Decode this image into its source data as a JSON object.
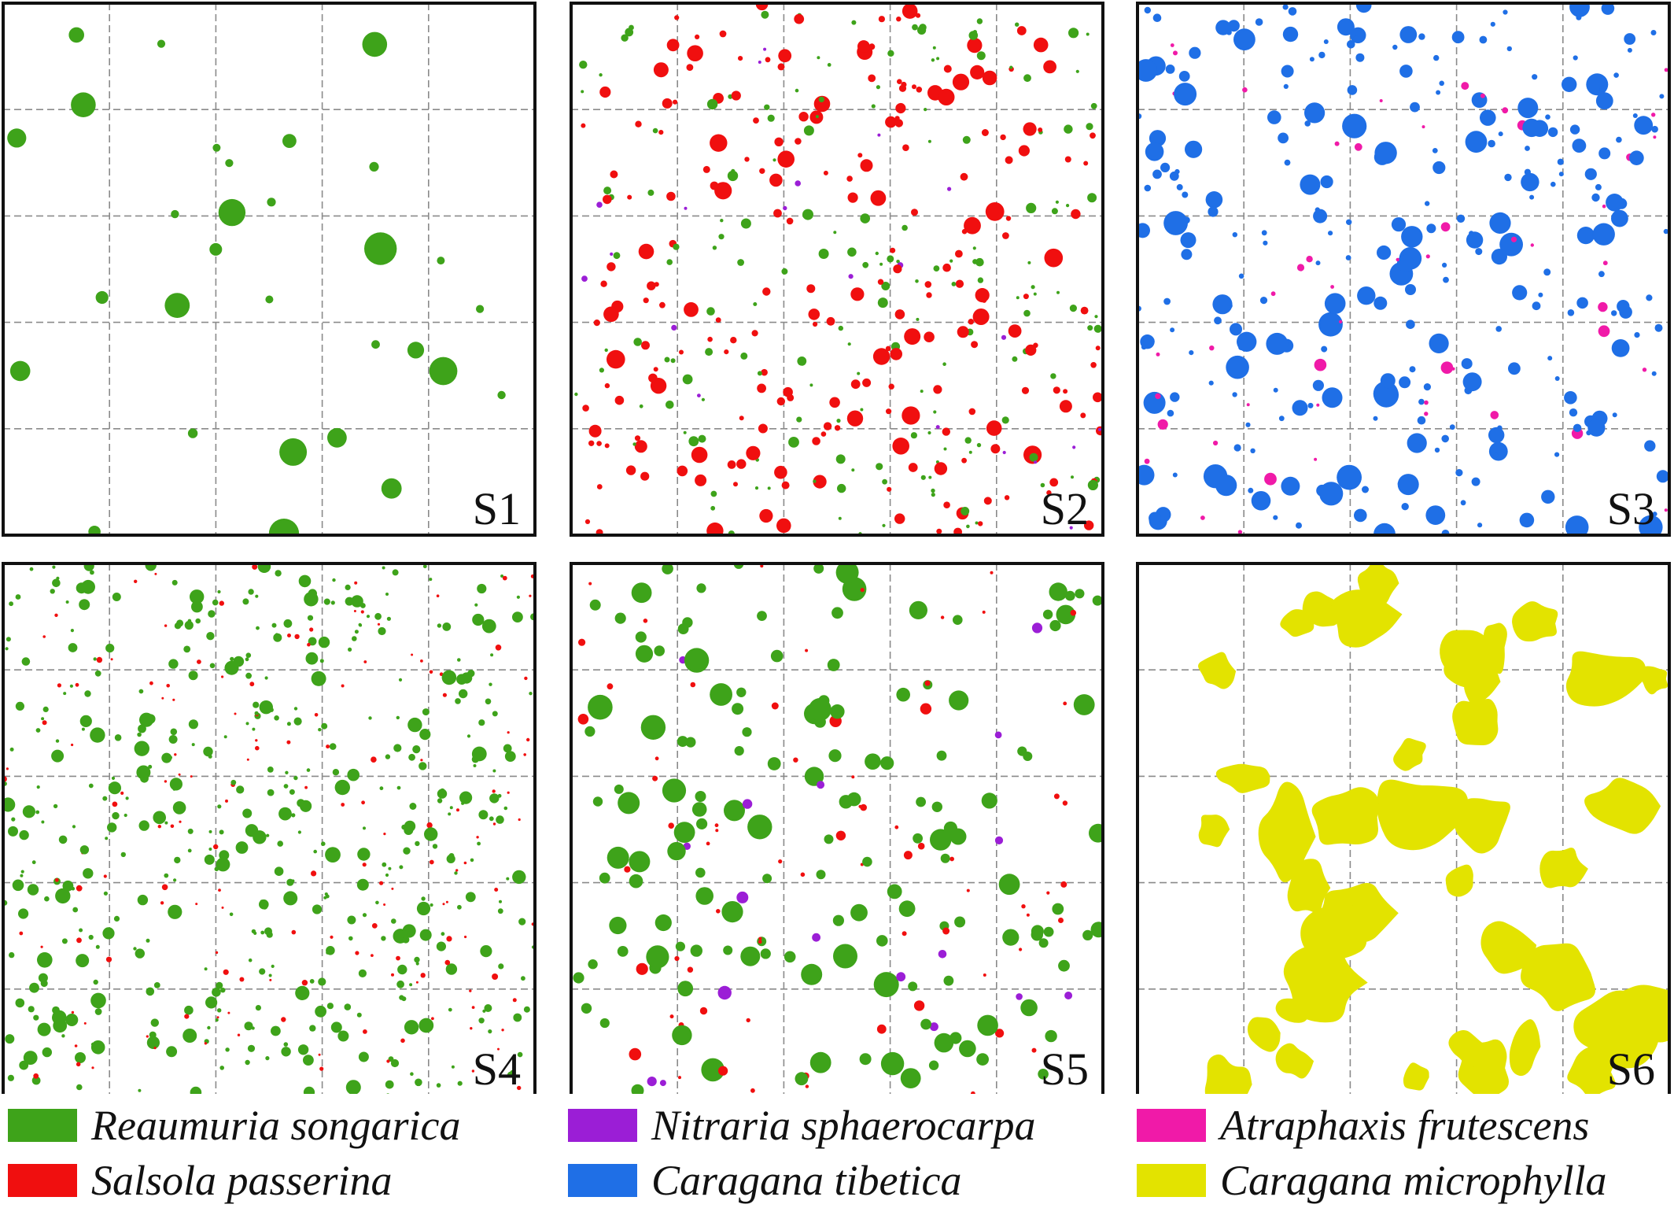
{
  "chart_data": {
    "type": "scatter",
    "description_note": "",
    "panels": [
      {
        "label": "S1",
        "species": [
          "Reaumuria songarica"
        ],
        "approx_point_count": 30
      },
      {
        "label": "S2",
        "species": [
          "Nitraria sphaerocarpa",
          "Salsola passerina",
          "Reaumuria songarica"
        ],
        "approx_point_count": 420
      },
      {
        "label": "S3",
        "species": [
          "Caragana tibetica",
          "Atraphaxis frutescens"
        ],
        "approx_point_count": 330
      },
      {
        "label": "S4",
        "species": [
          "Reaumuria songarica",
          "Salsola passerina"
        ],
        "approx_point_count": 620
      },
      {
        "label": "S5",
        "species": [
          "Reaumuria songarica",
          "Salsola passerina",
          "Nitraria sphaerocarpa"
        ],
        "approx_point_count": 240
      },
      {
        "label": "S6",
        "species": [
          "Caragana microphylla"
        ],
        "approx_point_count": 40
      }
    ],
    "grid": true,
    "grid_divisions": 5,
    "legend": {
      "placement": "bottom",
      "entries": [
        {
          "name": "Reaumuria songarica",
          "color": "#3ea31a"
        },
        {
          "name": "Nitraria sphaerocarpa",
          "color": "#9b1ed6"
        },
        {
          "name": "Atraphaxis frutescens",
          "color": "#f01aa8"
        },
        {
          "name": "Salsola passerina",
          "color": "#f00f0f"
        },
        {
          "name": "Caragana tibetica",
          "color": "#1f6fe6"
        },
        {
          "name": "Caragana microphylla",
          "color": "#e3e300"
        }
      ]
    }
  }
}
